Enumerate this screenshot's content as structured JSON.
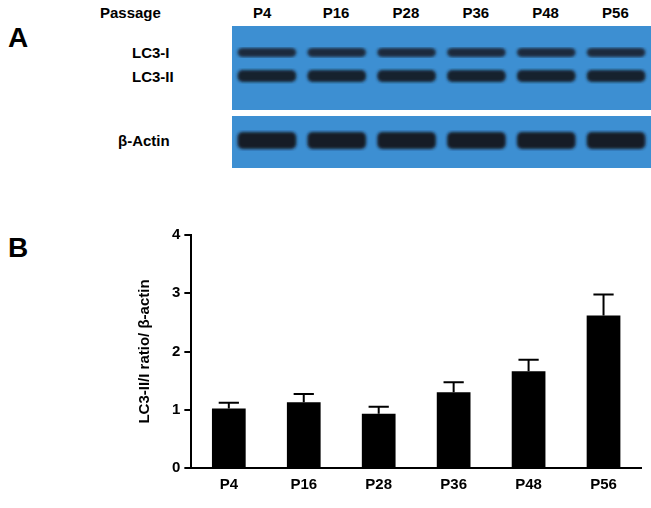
{
  "panel_labels": [
    "A",
    "B"
  ],
  "blot": {
    "header": "Passage",
    "lanes": [
      "P4",
      "P16",
      "P28",
      "P36",
      "P48",
      "P56"
    ],
    "rows": [
      "LC3-I",
      "LC3-II",
      "β-Actin"
    ]
  },
  "chart_data": {
    "type": "bar",
    "categories": [
      "P4",
      "P16",
      "P28",
      "P36",
      "P48",
      "P56"
    ],
    "values": [
      1.02,
      1.13,
      0.93,
      1.3,
      1.66,
      2.62
    ],
    "errors": [
      0.1,
      0.14,
      0.12,
      0.17,
      0.2,
      0.36
    ],
    "color": "#000000",
    "y_label": "LC3-II/I ratio/ β-actin",
    "ylim": [
      0,
      4
    ],
    "yticks": [
      0,
      1,
      2,
      3,
      4
    ],
    "grid": false
  }
}
